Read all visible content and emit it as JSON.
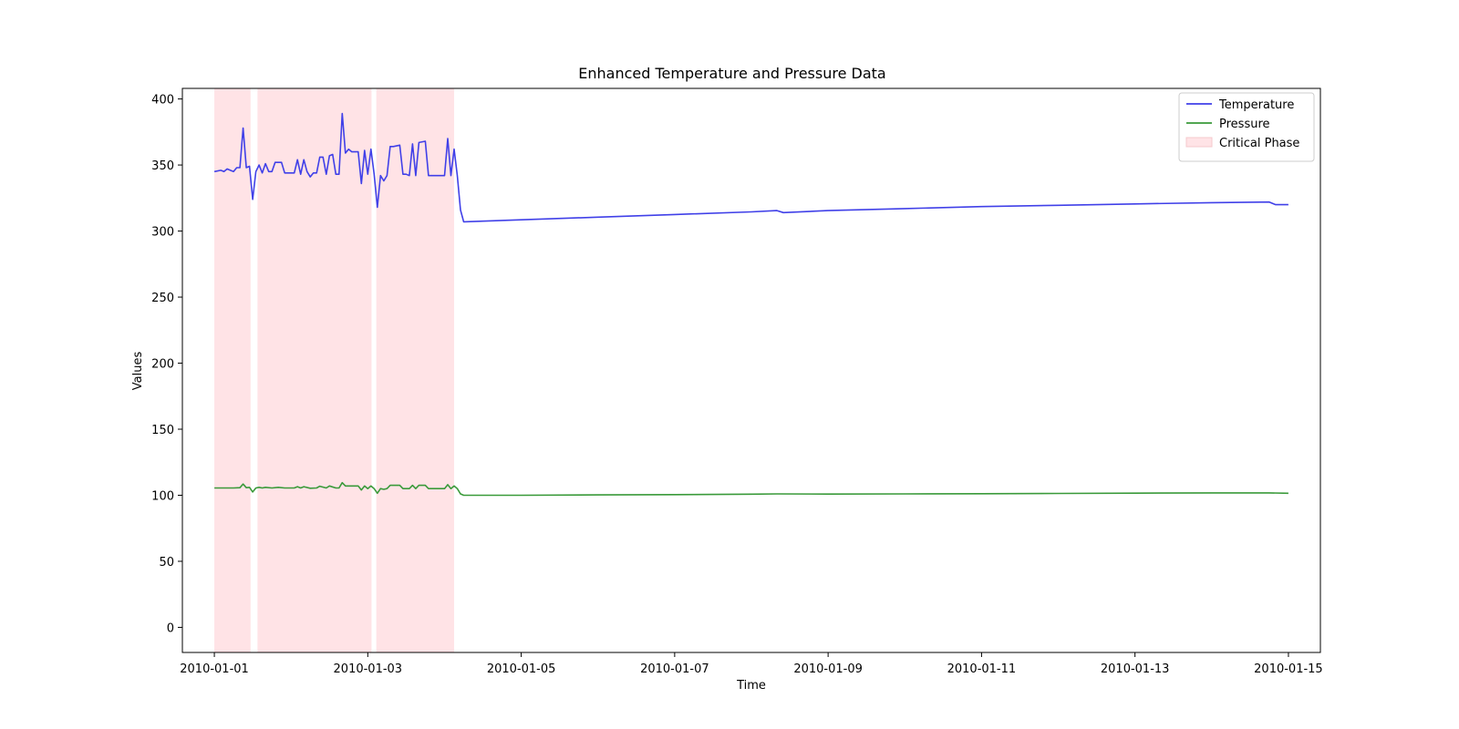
{
  "chart_data": {
    "type": "line",
    "title": "Enhanced Temperature and Pressure Data",
    "xlabel": "Time",
    "ylabel": "Values",
    "x_range": [
      "2009-12-31T14:00",
      "2010-01-15T10:00"
    ],
    "ylim": [
      -19,
      408
    ],
    "x_ticks": [
      "2010-01-01",
      "2010-01-03",
      "2010-01-05",
      "2010-01-07",
      "2010-01-09",
      "2010-01-11",
      "2010-01-13",
      "2010-01-15"
    ],
    "y_ticks": [
      0,
      50,
      100,
      150,
      200,
      250,
      300,
      350,
      400
    ],
    "grid": false,
    "legend_position": "top-right",
    "shaded_regions": {
      "name": "Critical Phase",
      "color": "#ffe3e6",
      "ranges": [
        [
          "2010-01-01T00:00",
          "2010-01-01T11:20"
        ],
        [
          "2010-01-01T13:30",
          "2010-01-03T01:10"
        ],
        [
          "2010-01-03T02:40",
          "2010-01-04T03:00"
        ]
      ]
    },
    "series": [
      {
        "name": "Temperature",
        "color": "#4040e8",
        "points": [
          [
            "2010-01-01T00:00",
            345
          ],
          [
            "2010-01-01T02:00",
            346
          ],
          [
            "2010-01-01T03:00",
            345
          ],
          [
            "2010-01-01T04:00",
            347
          ],
          [
            "2010-01-01T06:00",
            345
          ],
          [
            "2010-01-01T07:00",
            348
          ],
          [
            "2010-01-01T08:00",
            348
          ],
          [
            "2010-01-01T09:00",
            378
          ],
          [
            "2010-01-01T10:00",
            348
          ],
          [
            "2010-01-01T11:00",
            349
          ],
          [
            "2010-01-01T12:00",
            324
          ],
          [
            "2010-01-01T13:00",
            345
          ],
          [
            "2010-01-01T14:00",
            350
          ],
          [
            "2010-01-01T15:00",
            344
          ],
          [
            "2010-01-01T16:00",
            351
          ],
          [
            "2010-01-01T17:00",
            345
          ],
          [
            "2010-01-01T18:00",
            345
          ],
          [
            "2010-01-01T19:00",
            352
          ],
          [
            "2010-01-01T21:00",
            352
          ],
          [
            "2010-01-01T22:00",
            344
          ],
          [
            "2010-01-02T01:00",
            344
          ],
          [
            "2010-01-02T02:00",
            354
          ],
          [
            "2010-01-02T03:00",
            343
          ],
          [
            "2010-01-02T04:00",
            354
          ],
          [
            "2010-01-02T05:00",
            345
          ],
          [
            "2010-01-02T06:00",
            341
          ],
          [
            "2010-01-02T07:00",
            344
          ],
          [
            "2010-01-02T08:00",
            344
          ],
          [
            "2010-01-02T09:00",
            356
          ],
          [
            "2010-01-02T10:00",
            356
          ],
          [
            "2010-01-02T11:00",
            343
          ],
          [
            "2010-01-02T12:00",
            357
          ],
          [
            "2010-01-02T13:00",
            358
          ],
          [
            "2010-01-02T14:00",
            343
          ],
          [
            "2010-01-02T15:00",
            343
          ],
          [
            "2010-01-02T16:00",
            389
          ],
          [
            "2010-01-02T17:00",
            359
          ],
          [
            "2010-01-02T18:00",
            362
          ],
          [
            "2010-01-02T19:00",
            360
          ],
          [
            "2010-01-02T21:00",
            360
          ],
          [
            "2010-01-02T22:00",
            336
          ],
          [
            "2010-01-02T23:00",
            361
          ],
          [
            "2010-01-03T00:00",
            343
          ],
          [
            "2010-01-03T01:00",
            362
          ],
          [
            "2010-01-03T02:00",
            343
          ],
          [
            "2010-01-03T03:00",
            318
          ],
          [
            "2010-01-03T04:00",
            342
          ],
          [
            "2010-01-03T05:00",
            338
          ],
          [
            "2010-01-03T06:00",
            342
          ],
          [
            "2010-01-03T07:00",
            364
          ],
          [
            "2010-01-03T08:00",
            364
          ],
          [
            "2010-01-03T10:00",
            365
          ],
          [
            "2010-01-03T11:00",
            343
          ],
          [
            "2010-01-03T12:00",
            343
          ],
          [
            "2010-01-03T13:00",
            342
          ],
          [
            "2010-01-03T14:00",
            366
          ],
          [
            "2010-01-03T15:00",
            342
          ],
          [
            "2010-01-03T16:00",
            367
          ],
          [
            "2010-01-03T18:00",
            368
          ],
          [
            "2010-01-03T19:00",
            342
          ],
          [
            "2010-01-04T00:00",
            342
          ],
          [
            "2010-01-04T01:00",
            370
          ],
          [
            "2010-01-04T02:00",
            342
          ],
          [
            "2010-01-04T03:00",
            362
          ],
          [
            "2010-01-04T04:00",
            342
          ],
          [
            "2010-01-04T05:00",
            316
          ],
          [
            "2010-01-04T06:00",
            307
          ],
          [
            "2010-01-04T12:00",
            307.5
          ],
          [
            "2010-01-05T00:00",
            308.5
          ],
          [
            "2010-01-06T00:00",
            310.5
          ],
          [
            "2010-01-07T00:00",
            312.5
          ],
          [
            "2010-01-08T00:00",
            314.5
          ],
          [
            "2010-01-08T08:00",
            315.5
          ],
          [
            "2010-01-08T10:00",
            314
          ],
          [
            "2010-01-09T00:00",
            315.5
          ],
          [
            "2010-01-10T00:00",
            317
          ],
          [
            "2010-01-11T00:00",
            318.5
          ],
          [
            "2010-01-12T00:00",
            319.5
          ],
          [
            "2010-01-13T00:00",
            320.5
          ],
          [
            "2010-01-14T00:00",
            321.5
          ],
          [
            "2010-01-14T18:00",
            322
          ],
          [
            "2010-01-14T20:00",
            320
          ],
          [
            "2010-01-15T00:00",
            320
          ]
        ]
      },
      {
        "name": "Pressure",
        "color": "#3a9a3a",
        "points": [
          [
            "2010-01-01T00:00",
            105.5
          ],
          [
            "2010-01-01T02:00",
            105.5
          ],
          [
            "2010-01-01T04:00",
            105.5
          ],
          [
            "2010-01-01T06:00",
            105.5
          ],
          [
            "2010-01-01T08:00",
            105.7
          ],
          [
            "2010-01-01T09:00",
            108.5
          ],
          [
            "2010-01-01T10:00",
            105.7
          ],
          [
            "2010-01-01T11:00",
            106
          ],
          [
            "2010-01-01T12:00",
            102.5
          ],
          [
            "2010-01-01T13:00",
            105.5
          ],
          [
            "2010-01-01T14:00",
            106
          ],
          [
            "2010-01-01T15:00",
            105.5
          ],
          [
            "2010-01-01T16:00",
            106
          ],
          [
            "2010-01-01T18:00",
            105.5
          ],
          [
            "2010-01-01T20:00",
            106
          ],
          [
            "2010-01-01T22:00",
            105.5
          ],
          [
            "2010-01-02T01:00",
            105.5
          ],
          [
            "2010-01-02T02:00",
            106.5
          ],
          [
            "2010-01-02T03:00",
            105.5
          ],
          [
            "2010-01-02T04:00",
            106.5
          ],
          [
            "2010-01-02T06:00",
            105.3
          ],
          [
            "2010-01-02T08:00",
            105.5
          ],
          [
            "2010-01-02T09:00",
            106.8
          ],
          [
            "2010-01-02T11:00",
            105.5
          ],
          [
            "2010-01-02T12:00",
            107
          ],
          [
            "2010-01-02T14:00",
            105.5
          ],
          [
            "2010-01-02T15:00",
            105.5
          ],
          [
            "2010-01-02T16:00",
            109.5
          ],
          [
            "2010-01-02T17:00",
            107
          ],
          [
            "2010-01-02T21:00",
            107
          ],
          [
            "2010-01-02T22:00",
            104
          ],
          [
            "2010-01-02T23:00",
            107
          ],
          [
            "2010-01-03T00:00",
            105
          ],
          [
            "2010-01-03T01:00",
            107
          ],
          [
            "2010-01-03T02:00",
            105
          ],
          [
            "2010-01-03T03:00",
            101.5
          ],
          [
            "2010-01-03T04:00",
            105
          ],
          [
            "2010-01-03T05:00",
            104.5
          ],
          [
            "2010-01-03T06:00",
            105
          ],
          [
            "2010-01-03T07:00",
            107.5
          ],
          [
            "2010-01-03T10:00",
            107.5
          ],
          [
            "2010-01-03T11:00",
            105
          ],
          [
            "2010-01-03T13:00",
            105
          ],
          [
            "2010-01-03T14:00",
            107.5
          ],
          [
            "2010-01-03T15:00",
            105
          ],
          [
            "2010-01-03T16:00",
            107.5
          ],
          [
            "2010-01-03T18:00",
            107.5
          ],
          [
            "2010-01-03T19:00",
            105
          ],
          [
            "2010-01-04T00:00",
            105
          ],
          [
            "2010-01-04T01:00",
            108
          ],
          [
            "2010-01-04T02:00",
            105
          ],
          [
            "2010-01-04T03:00",
            107
          ],
          [
            "2010-01-04T04:00",
            105
          ],
          [
            "2010-01-04T05:00",
            101
          ],
          [
            "2010-01-04T06:00",
            100
          ],
          [
            "2010-01-05T00:00",
            100
          ],
          [
            "2010-01-06T00:00",
            100.3
          ],
          [
            "2010-01-07T00:00",
            100.5
          ],
          [
            "2010-01-08T00:00",
            100.8
          ],
          [
            "2010-01-08T08:00",
            101
          ],
          [
            "2010-01-09T00:00",
            100.9
          ],
          [
            "2010-01-10T00:00",
            101
          ],
          [
            "2010-01-11T00:00",
            101.2
          ],
          [
            "2010-01-12T00:00",
            101.4
          ],
          [
            "2010-01-13T00:00",
            101.6
          ],
          [
            "2010-01-14T00:00",
            101.8
          ],
          [
            "2010-01-14T18:00",
            101.8
          ],
          [
            "2010-01-15T00:00",
            101.5
          ]
        ]
      }
    ]
  }
}
